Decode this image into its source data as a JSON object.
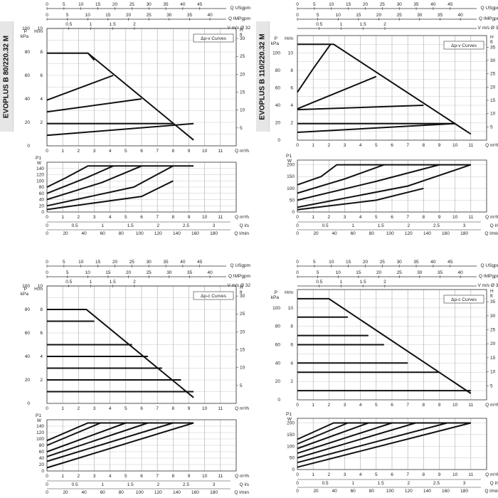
{
  "side_labels": [
    "EVOPLUS B 80/220.32 M",
    "EVOPLUS B 110/220.32 M"
  ],
  "axis_labels": {
    "q_usgpm": "Q USgpm",
    "q_impgpm": "Q IMPgpm",
    "v": "V m/s Ø 32",
    "q_m3h": "Q m³/h",
    "q_ls": "Q l/s",
    "q_lmin": "Q l/min",
    "p_kpa": "P kPa",
    "h_m": "H/m",
    "h_ft": "H ft",
    "p1_w": "P1 W"
  },
  "chart_data": [
    {
      "id": "tl-head",
      "type": "line",
      "legend": "Δp-v Curves",
      "x_range": [
        0,
        12
      ],
      "y_range": [
        0,
        10
      ],
      "kpa_ticks": [
        0,
        20,
        40,
        60,
        80,
        100
      ],
      "hm_ticks": [
        2,
        4,
        6,
        8,
        10
      ],
      "ft_ticks": [
        5,
        10,
        15,
        20,
        25,
        30
      ],
      "series": [
        {
          "x": [
            0,
            9.3
          ],
          "y": [
            0.9,
            1.9
          ]
        },
        {
          "x": [
            0,
            8
          ],
          "y": [
            1.9,
            1.9
          ]
        },
        {
          "x": [
            0,
            6
          ],
          "y": [
            2.9,
            4.0
          ]
        },
        {
          "x": [
            0,
            4.2
          ],
          "y": [
            3.9,
            6.0
          ]
        },
        {
          "x": [
            0,
            2.6,
            9.3
          ],
          "y": [
            7.9,
            7.9,
            0.5
          ]
        },
        {
          "x": [
            2.6,
            3.0
          ],
          "y": [
            7.9,
            7.3
          ]
        }
      ]
    },
    {
      "id": "tl-power",
      "type": "line",
      "x_range": [
        0,
        12
      ],
      "y_range": [
        0,
        160
      ],
      "y_ticks": [
        0,
        20,
        40,
        60,
        80,
        100,
        120,
        140
      ],
      "series": [
        {
          "x": [
            0,
            1.2,
            2.6,
            9.3
          ],
          "y": [
            80,
            110,
            148,
            148
          ]
        },
        {
          "x": [
            0,
            2.5,
            4.2
          ],
          "y": [
            60,
            110,
            148
          ]
        },
        {
          "x": [
            0,
            3.5,
            6
          ],
          "y": [
            40,
            95,
            148
          ]
        },
        {
          "x": [
            0,
            5.5,
            8
          ],
          "y": [
            20,
            80,
            148
          ]
        },
        {
          "x": [
            0,
            6.0,
            8.0
          ],
          "y": [
            8,
            50,
            100
          ]
        }
      ]
    },
    {
      "id": "tr-head",
      "type": "line",
      "legend": "Δp-v Curves",
      "x_range": [
        0,
        12
      ],
      "y_range": [
        0,
        12
      ],
      "kpa_ticks": [
        0,
        20,
        40,
        60,
        80,
        100
      ],
      "hm_ticks": [
        2,
        4,
        6,
        8,
        10
      ],
      "ft_ticks": [
        5,
        10,
        15,
        20,
        25,
        30,
        35
      ],
      "series": [
        {
          "x": [
            0,
            10
          ],
          "y": [
            0.9,
            1.9
          ]
        },
        {
          "x": [
            0,
            10
          ],
          "y": [
            1.9,
            1.9
          ]
        },
        {
          "x": [
            0,
            8
          ],
          "y": [
            3.5,
            4.0
          ]
        },
        {
          "x": [
            0,
            5
          ],
          "y": [
            3.6,
            7.3
          ]
        },
        {
          "x": [
            0,
            1.0,
            2.1
          ],
          "y": [
            5.5,
            8.2,
            11.0
          ]
        },
        {
          "x": [
            0,
            2.3,
            11
          ],
          "y": [
            11.0,
            11.0,
            0.7
          ]
        }
      ]
    },
    {
      "id": "tr-power",
      "type": "line",
      "x_range": [
        0,
        12
      ],
      "y_range": [
        0,
        220
      ],
      "y_ticks": [
        0,
        50,
        100,
        150,
        200
      ],
      "series": [
        {
          "x": [
            0,
            1.5,
            2.5,
            11
          ],
          "y": [
            115,
            150,
            200,
            200
          ]
        },
        {
          "x": [
            0,
            3.0,
            5.5
          ],
          "y": [
            80,
            140,
            200
          ]
        },
        {
          "x": [
            0,
            5.0,
            9.0
          ],
          "y": [
            50,
            130,
            200
          ]
        },
        {
          "x": [
            0,
            7.0,
            11.0
          ],
          "y": [
            20,
            110,
            200
          ]
        },
        {
          "x": [
            0,
            5.0,
            8.0
          ],
          "y": [
            10,
            50,
            100
          ]
        }
      ]
    },
    {
      "id": "bl-head",
      "type": "line",
      "legend": "Δp-c Curves",
      "x_range": [
        0,
        12
      ],
      "y_range": [
        0,
        10
      ],
      "kpa_ticks": [
        0,
        20,
        40,
        60,
        80,
        100
      ],
      "hm_ticks": [
        2,
        4,
        6,
        8,
        10
      ],
      "ft_ticks": [
        5,
        10,
        15,
        20,
        25,
        30
      ],
      "series": [
        {
          "x": [
            0,
            2.5,
            9.3
          ],
          "y": [
            8,
            8,
            0.5
          ]
        },
        {
          "x": [
            0,
            3.0
          ],
          "y": [
            7,
            7
          ]
        },
        {
          "x": [
            0,
            5.4
          ],
          "y": [
            5,
            5
          ]
        },
        {
          "x": [
            0,
            6.4
          ],
          "y": [
            4,
            4
          ]
        },
        {
          "x": [
            0,
            7.3
          ],
          "y": [
            3,
            3
          ]
        },
        {
          "x": [
            0,
            8.5
          ],
          "y": [
            2,
            2
          ]
        },
        {
          "x": [
            0,
            9.3
          ],
          "y": [
            1,
            1
          ]
        }
      ]
    },
    {
      "id": "bl-power",
      "type": "line",
      "x_range": [
        0,
        12
      ],
      "y_range": [
        0,
        160
      ],
      "y_ticks": [
        0,
        20,
        40,
        60,
        80,
        100,
        120,
        140
      ],
      "series": [
        {
          "x": [
            0,
            2.6,
            9.3
          ],
          "y": [
            95,
            150,
            150
          ]
        },
        {
          "x": [
            0,
            3.4
          ],
          "y": [
            80,
            150
          ]
        },
        {
          "x": [
            0,
            5.0
          ],
          "y": [
            60,
            150
          ]
        },
        {
          "x": [
            0,
            6.4
          ],
          "y": [
            45,
            150
          ]
        },
        {
          "x": [
            0,
            8.0
          ],
          "y": [
            30,
            150
          ]
        },
        {
          "x": [
            0,
            9.3
          ],
          "y": [
            10,
            150
          ]
        }
      ]
    },
    {
      "id": "br-head",
      "type": "line",
      "legend": "Δp-c Curves",
      "x_range": [
        0,
        12
      ],
      "y_range": [
        0,
        12
      ],
      "kpa_ticks": [
        0,
        20,
        40,
        60,
        80,
        100
      ],
      "hm_ticks": [
        2,
        4,
        6,
        8,
        10
      ],
      "ft_ticks": [
        5,
        10,
        15,
        20,
        25,
        30,
        35
      ],
      "series": [
        {
          "x": [
            0,
            2.0,
            11
          ],
          "y": [
            11,
            11,
            0.7
          ]
        },
        {
          "x": [
            0,
            3.2
          ],
          "y": [
            9,
            9
          ]
        },
        {
          "x": [
            0,
            4.5
          ],
          "y": [
            7,
            7
          ]
        },
        {
          "x": [
            0,
            5.5
          ],
          "y": [
            6,
            6
          ]
        },
        {
          "x": [
            0,
            7.0
          ],
          "y": [
            4,
            4
          ]
        },
        {
          "x": [
            0,
            9.0
          ],
          "y": [
            3,
            3
          ]
        },
        {
          "x": [
            0,
            11.0
          ],
          "y": [
            1,
            1
          ]
        }
      ]
    },
    {
      "id": "br-power",
      "type": "line",
      "x_range": [
        0,
        12
      ],
      "y_range": [
        0,
        220
      ],
      "y_ticks": [
        0,
        50,
        100,
        150,
        200
      ],
      "series": [
        {
          "x": [
            0,
            2.3,
            11
          ],
          "y": [
            130,
            200,
            200
          ]
        },
        {
          "x": [
            0,
            3.2
          ],
          "y": [
            110,
            200
          ]
        },
        {
          "x": [
            0,
            4.5
          ],
          "y": [
            90,
            200
          ]
        },
        {
          "x": [
            0,
            6.0
          ],
          "y": [
            70,
            200
          ]
        },
        {
          "x": [
            0,
            7.5
          ],
          "y": [
            50,
            200
          ]
        },
        {
          "x": [
            0,
            9.5
          ],
          "y": [
            30,
            200
          ]
        },
        {
          "x": [
            0,
            11.0
          ],
          "y": [
            10,
            200
          ]
        }
      ]
    }
  ],
  "axes": {
    "usgpm_ticks": [
      0,
      5,
      10,
      15,
      20,
      25,
      30,
      35,
      40,
      45
    ],
    "impgpm_ticks": [
      0,
      5,
      10,
      15,
      20,
      25,
      30,
      35,
      40
    ],
    "v_ticks": [
      "0.5",
      "1",
      "1.5",
      "2"
    ],
    "q_ticks": [
      0,
      1,
      2,
      3,
      4,
      5,
      6,
      7,
      8,
      9,
      10,
      11
    ],
    "ls_ticks": [
      "0",
      "0.5",
      "1",
      "1.5",
      "2",
      "2.5",
      "3"
    ],
    "lmin_ticks": [
      0,
      20,
      40,
      60,
      80,
      100,
      120,
      140,
      160,
      180
    ]
  }
}
